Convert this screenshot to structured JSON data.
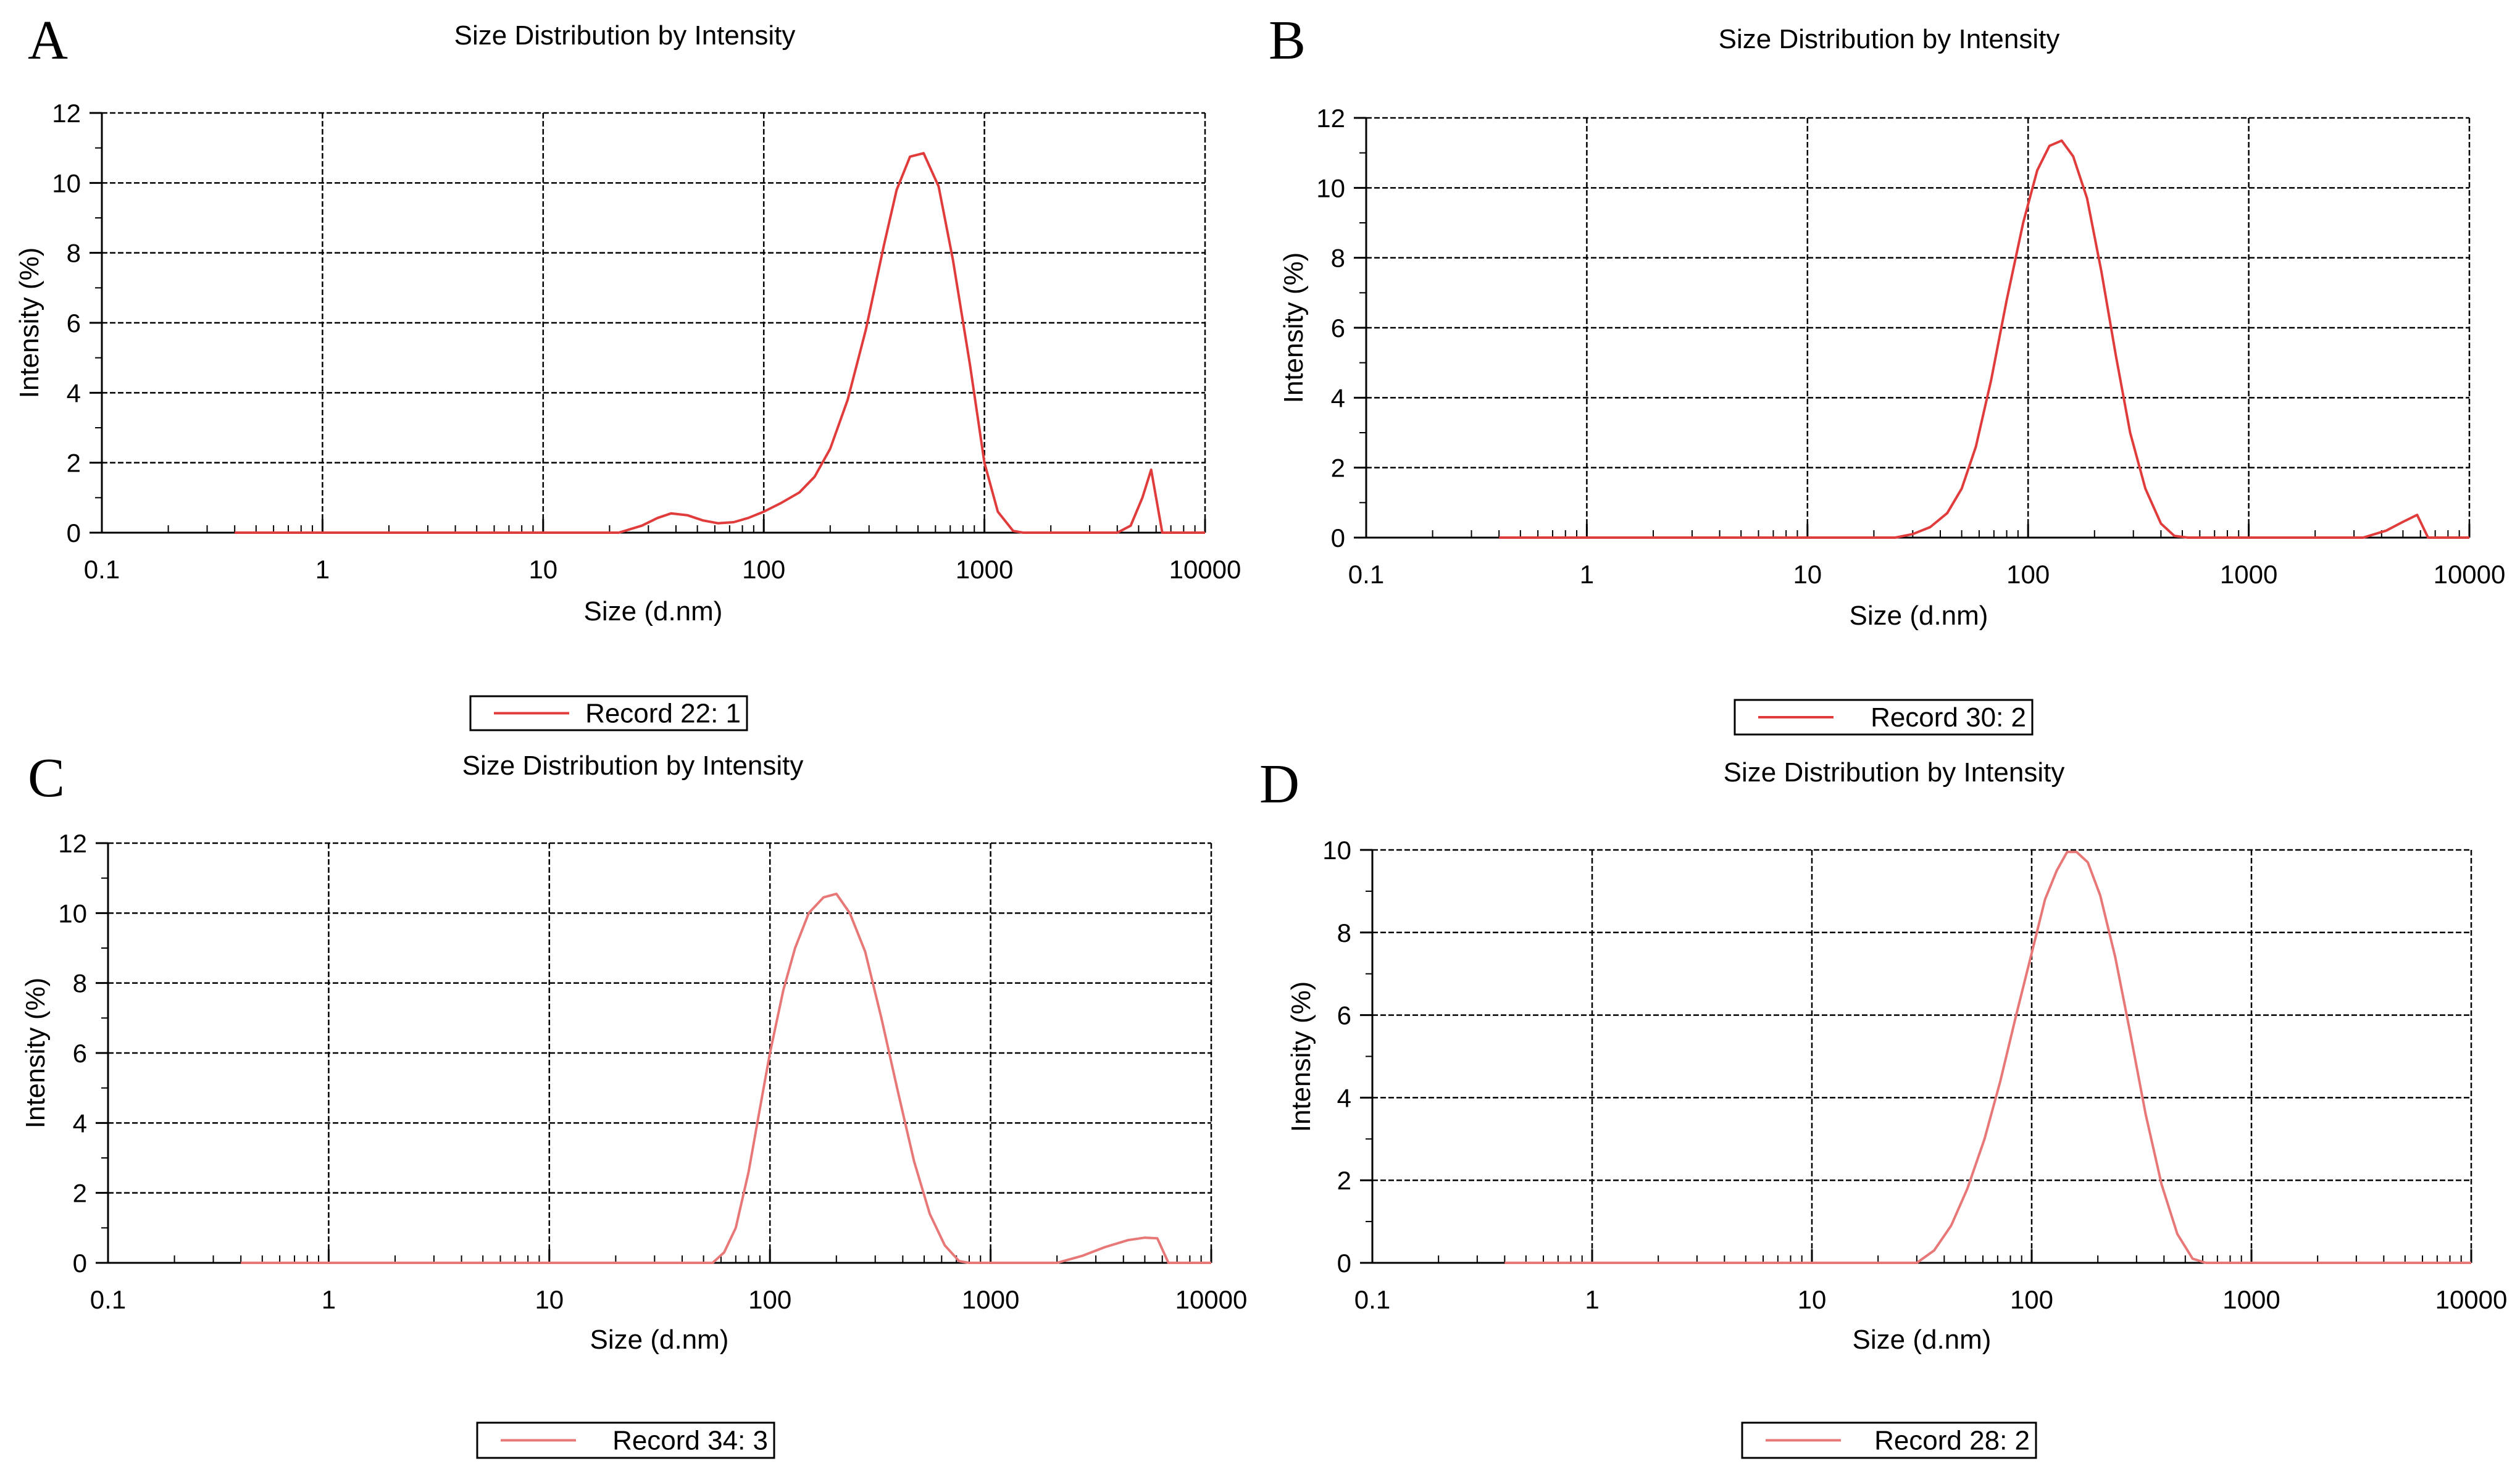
{
  "chart_data": [
    {
      "panel": "A",
      "type": "line",
      "title": "Size Distribution by Intensity",
      "xlabel": "Size (d.nm)",
      "ylabel": "Intensity (%)",
      "xscale": "log",
      "xlim": [
        0.1,
        10000
      ],
      "ylim": [
        0,
        12
      ],
      "xticks": [
        "0.1",
        "1",
        "10",
        "100",
        "1000",
        "10000"
      ],
      "yticks": [
        "0",
        "2",
        "4",
        "6",
        "8",
        "10",
        "12"
      ],
      "grid": true,
      "legend": "bottom-center",
      "series": [
        {
          "name": "Record 22: 1",
          "color": "#e03c3c",
          "x": [
            0.4,
            22,
            28,
            33,
            38,
            45,
            53,
            62,
            73,
            85,
            100,
            120,
            145,
            170,
            200,
            240,
            290,
            350,
            400,
            460,
            530,
            620,
            720,
            860,
            1000,
            1150,
            1350,
            1500,
            4000,
            4600,
            5200,
            5700,
            6400,
            10000
          ],
          "y": [
            0,
            0,
            0.2,
            0.42,
            0.55,
            0.5,
            0.35,
            0.27,
            0.3,
            0.42,
            0.6,
            0.85,
            1.15,
            1.6,
            2.4,
            3.8,
            5.8,
            8.2,
            9.8,
            10.75,
            10.85,
            9.9,
            7.8,
            4.8,
            2.0,
            0.6,
            0.05,
            0,
            0,
            0.2,
            1.0,
            1.8,
            0,
            0
          ]
        }
      ]
    },
    {
      "panel": "B",
      "type": "line",
      "title": "Size Distribution by Intensity",
      "xlabel": "Size (d.nm)",
      "ylabel": "Intensity (%)",
      "xscale": "log",
      "xlim": [
        0.1,
        10000
      ],
      "ylim": [
        0,
        12
      ],
      "xticks": [
        "0.1",
        "1",
        "10",
        "100",
        "1000",
        "10000"
      ],
      "yticks": [
        "0",
        "2",
        "4",
        "6",
        "8",
        "10",
        "12"
      ],
      "grid": true,
      "legend": "bottom-center",
      "series": [
        {
          "name": "Record 30: 2",
          "color": "#e03c3c",
          "x": [
            0.4,
            25,
            30,
            36,
            43,
            50,
            58,
            68,
            80,
            95,
            110,
            125,
            142,
            160,
            185,
            215,
            250,
            290,
            340,
            400,
            460,
            530,
            3300,
            4200,
            5000,
            5800,
            6500,
            10000
          ],
          "y": [
            0,
            0,
            0.1,
            0.3,
            0.7,
            1.4,
            2.6,
            4.5,
            6.8,
            9.0,
            10.5,
            11.2,
            11.35,
            10.9,
            9.7,
            7.6,
            5.2,
            3.0,
            1.4,
            0.4,
            0.05,
            0,
            0,
            0.2,
            0.45,
            0.65,
            0,
            0
          ]
        }
      ]
    },
    {
      "panel": "C",
      "type": "line",
      "title": "Size Distribution by Intensity",
      "xlabel": "Size (d.nm)",
      "ylabel": "Intensity (%)",
      "xscale": "log",
      "xlim": [
        0.1,
        10000
      ],
      "ylim": [
        0,
        12
      ],
      "xticks": [
        "0.1",
        "1",
        "10",
        "100",
        "1000",
        "10000"
      ],
      "yticks": [
        "0",
        "2",
        "4",
        "6",
        "8",
        "10",
        "12"
      ],
      "grid": true,
      "legend": "bottom-center",
      "series": [
        {
          "name": "Record 34: 3",
          "color": "#e87878",
          "x": [
            0.4,
            55,
            62,
            70,
            80,
            90,
            100,
            115,
            130,
            150,
            175,
            200,
            230,
            270,
            320,
            380,
            450,
            530,
            620,
            720,
            800,
            2000,
            2600,
            3300,
            4200,
            5000,
            5700,
            6400,
            10000
          ],
          "y": [
            0,
            0,
            0.3,
            1.0,
            2.6,
            4.4,
            6.0,
            7.8,
            9.0,
            10.0,
            10.45,
            10.55,
            10.0,
            8.9,
            7.0,
            4.9,
            2.9,
            1.4,
            0.5,
            0.05,
            0,
            0,
            0.2,
            0.45,
            0.65,
            0.72,
            0.7,
            0,
            0
          ]
        }
      ]
    },
    {
      "panel": "D",
      "type": "line",
      "title": "Size Distribution by Intensity",
      "xlabel": "Size (d.nm)",
      "ylabel": "Intensity (%)",
      "xscale": "log",
      "xlim": [
        0.1,
        10000
      ],
      "ylim": [
        0,
        10
      ],
      "xticks": [
        "0.1",
        "1",
        "10",
        "100",
        "1000",
        "10000"
      ],
      "yticks": [
        "0",
        "2",
        "4",
        "6",
        "8",
        "10"
      ],
      "grid": true,
      "legend": "bottom-center",
      "series": [
        {
          "name": "Record 28: 2",
          "color": "#e87878",
          "x": [
            0.4,
            30,
            36,
            43,
            51,
            61,
            72,
            85,
            100,
            115,
            130,
            145,
            160,
            180,
            205,
            240,
            280,
            330,
            390,
            460,
            540,
            620,
            10000
          ],
          "y": [
            0,
            0,
            0.3,
            0.9,
            1.8,
            3.0,
            4.4,
            6.0,
            7.5,
            8.8,
            9.5,
            9.95,
            9.95,
            9.7,
            8.9,
            7.4,
            5.6,
            3.6,
            1.9,
            0.7,
            0.1,
            0,
            0
          ]
        }
      ]
    }
  ]
}
